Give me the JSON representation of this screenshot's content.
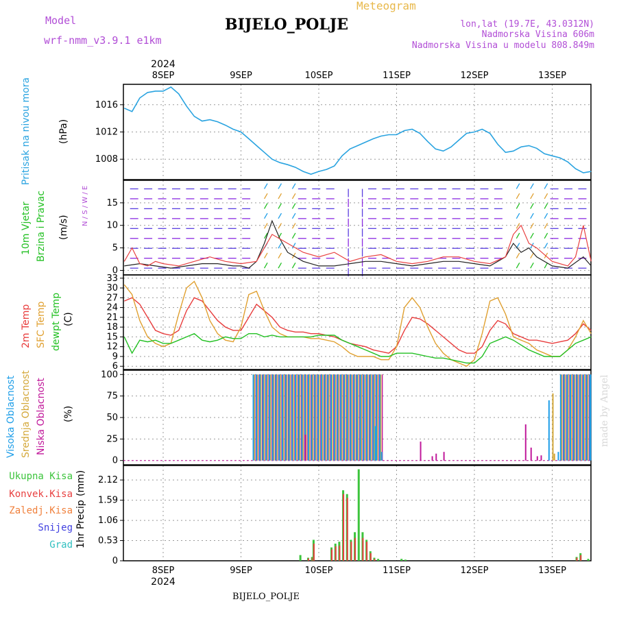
{
  "header": {
    "model_label": "Model",
    "model_name": "wrf-nmm_v3.9.1  e1km",
    "title": "BIJELO_POLJE",
    "meteogram_label": "Meteogram",
    "coords": "lon,lat (19.7E, 43.0312N)",
    "altitude": "Nadmorska Visina 606m",
    "model_altitude": "Nadmorska Visina u modelu 808.849m",
    "footer_title": "BIJELO_POLJE",
    "watermark": "made by Angel",
    "year_top": "2024",
    "year_bottom": "2024"
  },
  "colors": {
    "pressure": "#29a3e0",
    "temp2m": "#e83c3c",
    "sfc": "#e0a030",
    "dew": "#22c022",
    "cloud_high": "#1e9ee8",
    "cloud_mid": "#d4a83a",
    "cloud_low": "#c0189a",
    "precip_total": "#3cc43c",
    "precip_conv": "#e84040",
    "precip_strat": "#f0803c",
    "snow": "#4040e0",
    "hail": "#30c0c0",
    "wind_speed": "#222222",
    "wind_gust": "#e84040",
    "wind_barb": "#8a2be2"
  },
  "chart_data": [
    {
      "type": "line",
      "panel": "pressure",
      "ylabel_main": "Pritisak na nivou mora",
      "ylabel_unit": "(hPa)",
      "yticks": [
        1008,
        1012,
        1016
      ],
      "ylim": [
        1005,
        1019
      ],
      "xlabel_days": [
        "8SEP",
        "9SEP",
        "10SEP",
        "11SEP",
        "12SEP",
        "13SEP"
      ],
      "x": [
        -0.5,
        -0.4,
        -0.3,
        -0.2,
        -0.1,
        0,
        0.1,
        0.2,
        0.3,
        0.4,
        0.5,
        0.6,
        0.7,
        0.8,
        0.9,
        1.0,
        1.1,
        1.2,
        1.3,
        1.4,
        1.5,
        1.6,
        1.7,
        1.8,
        1.9,
        2.0,
        2.1,
        2.2,
        2.3,
        2.4,
        2.5,
        2.6,
        2.7,
        2.8,
        2.9,
        3.0,
        3.1,
        3.2,
        3.3,
        3.4,
        3.5,
        3.6,
        3.7,
        3.8,
        3.9,
        4.0,
        4.1,
        4.2,
        4.3,
        4.4,
        4.5,
        4.6,
        4.7,
        4.8,
        4.9,
        5.0,
        5.1,
        5.2,
        5.3,
        5.4,
        5.5
      ],
      "values": [
        1015.5,
        1015.0,
        1017.0,
        1017.8,
        1018.0,
        1018.0,
        1018.6,
        1017.6,
        1015.8,
        1014.3,
        1013.6,
        1013.8,
        1013.5,
        1013.0,
        1012.4,
        1012.0,
        1011.0,
        1010.0,
        1009.0,
        1008.0,
        1007.5,
        1007.2,
        1006.8,
        1006.2,
        1005.8,
        1006.2,
        1006.5,
        1007.0,
        1008.5,
        1009.5,
        1010.0,
        1010.5,
        1011.0,
        1011.4,
        1011.6,
        1011.6,
        1012.2,
        1012.4,
        1011.8,
        1010.6,
        1009.5,
        1009.2,
        1009.8,
        1010.8,
        1011.8,
        1012.0,
        1012.4,
        1011.8,
        1010.2,
        1009.0,
        1009.2,
        1009.8,
        1010.0,
        1009.6,
        1008.8,
        1008.5,
        1008.2,
        1007.6,
        1006.6,
        1006.0,
        1006.2
      ]
    },
    {
      "type": "line",
      "panel": "wind",
      "ylabel_main": "10m Vjetar",
      "ylabel_sub": "Brzina i Pravac",
      "ylabel_unit": "(m/s)",
      "compass": "N / S / W / E",
      "yticks": [
        0,
        5,
        10,
        15
      ],
      "ylim": [
        -1,
        20
      ],
      "series": [
        {
          "key": "speed",
          "x": [
            -0.5,
            -0.3,
            -0.1,
            0.1,
            0.3,
            0.5,
            0.7,
            0.9,
            1.0,
            1.1,
            1.2,
            1.3,
            1.4,
            1.5,
            1.6,
            1.8,
            2.0,
            2.2,
            2.4,
            2.6,
            2.8,
            3.0,
            3.2,
            3.4,
            3.6,
            3.8,
            4.0,
            4.2,
            4.3,
            4.4,
            4.5,
            4.6,
            4.7,
            4.8,
            5.0,
            5.2,
            5.4,
            5.5
          ],
          "values": [
            1,
            1.5,
            1,
            0.5,
            1,
            1.5,
            1.5,
            1,
            1,
            0.5,
            2,
            6,
            11,
            7,
            4,
            2,
            1,
            1,
            1.5,
            2,
            2,
            1.5,
            1,
            1.5,
            2,
            2,
            1.5,
            1,
            2,
            3,
            6,
            4,
            5,
            3,
            1,
            0.5,
            3,
            1
          ]
        },
        {
          "key": "gust",
          "x": [
            -0.5,
            -0.4,
            -0.3,
            -0.2,
            -0.1,
            0,
            0.2,
            0.4,
            0.6,
            0.8,
            1.0,
            1.2,
            1.4,
            1.6,
            1.8,
            2.0,
            2.2,
            2.4,
            2.6,
            2.8,
            3.0,
            3.2,
            3.4,
            3.6,
            3.8,
            4.0,
            4.2,
            4.4,
            4.5,
            4.6,
            4.7,
            4.8,
            5.0,
            5.2,
            5.3,
            5.4,
            5.5
          ],
          "values": [
            2,
            5,
            1.5,
            1,
            2,
            1.5,
            1,
            2,
            3,
            2,
            1.5,
            2,
            8,
            6,
            4,
            3,
            4,
            2,
            3,
            3.5,
            2,
            1.5,
            2,
            3,
            3,
            2,
            1.5,
            3,
            8,
            10,
            6,
            5,
            2,
            1,
            3,
            10,
            2
          ]
        }
      ]
    },
    {
      "type": "line",
      "panel": "temperature",
      "ylabel_a": "2m Temp",
      "ylabel_b": "SFC Temp",
      "ylabel_c": "dewpt Temp",
      "ylabel_unit": "(C)",
      "yticks": [
        6,
        9,
        12,
        15,
        18,
        21,
        24,
        27,
        30,
        33
      ],
      "ylim": [
        5,
        34
      ],
      "series": [
        {
          "key": "temp2m",
          "x": [
            -0.5,
            -0.4,
            -0.3,
            -0.2,
            -0.1,
            0,
            0.1,
            0.2,
            0.3,
            0.4,
            0.5,
            0.6,
            0.7,
            0.8,
            0.9,
            1.0,
            1.1,
            1.2,
            1.3,
            1.4,
            1.5,
            1.6,
            1.7,
            1.8,
            1.9,
            2.0,
            2.1,
            2.2,
            2.3,
            2.4,
            2.5,
            2.6,
            2.7,
            2.8,
            2.9,
            3.0,
            3.1,
            3.2,
            3.3,
            3.4,
            3.5,
            3.6,
            3.7,
            3.8,
            3.9,
            4.0,
            4.1,
            4.2,
            4.3,
            4.4,
            4.5,
            4.6,
            4.7,
            4.8,
            4.9,
            5.0,
            5.1,
            5.2,
            5.3,
            5.4,
            5.5
          ],
          "values": [
            26,
            27,
            25,
            21,
            17,
            16,
            15.5,
            17,
            23,
            27,
            26,
            23,
            20,
            18,
            17,
            17,
            21,
            25,
            23,
            21,
            18,
            17,
            16.5,
            16.5,
            16,
            16,
            15.5,
            15,
            14,
            13,
            12.5,
            12,
            11,
            10.5,
            10,
            12,
            17,
            21,
            20.5,
            19,
            17,
            15,
            13,
            11,
            10,
            10,
            12,
            17,
            20,
            19,
            16,
            15,
            14,
            14,
            13.5,
            13,
            13.5,
            14,
            16,
            19,
            17
          ]
        },
        {
          "key": "sfc",
          "x": [
            -0.5,
            -0.4,
            -0.3,
            -0.2,
            -0.1,
            0,
            0.1,
            0.2,
            0.3,
            0.4,
            0.5,
            0.6,
            0.7,
            0.8,
            0.9,
            1.0,
            1.1,
            1.2,
            1.3,
            1.4,
            1.5,
            1.6,
            1.7,
            1.8,
            1.9,
            2.0,
            2.1,
            2.2,
            2.3,
            2.4,
            2.5,
            2.6,
            2.7,
            2.8,
            2.9,
            3.0,
            3.1,
            3.2,
            3.3,
            3.4,
            3.5,
            3.6,
            3.7,
            3.8,
            3.9,
            4.0,
            4.1,
            4.2,
            4.3,
            4.4,
            4.5,
            4.6,
            4.7,
            4.8,
            4.9,
            5.0,
            5.1,
            5.2,
            5.3,
            5.4,
            5.5
          ],
          "values": [
            31,
            28,
            20,
            15,
            13,
            12,
            13,
            22,
            30,
            32,
            27,
            20,
            16,
            14,
            13.5,
            18,
            28,
            29,
            23,
            18,
            16,
            15,
            15,
            15,
            14.5,
            14.5,
            14,
            13.5,
            12,
            10,
            9,
            9,
            9,
            8,
            8,
            12,
            24,
            27,
            24,
            18,
            13,
            10,
            8,
            7,
            6,
            8,
            16,
            26,
            27,
            22,
            15,
            14,
            13,
            11,
            10,
            9,
            9,
            11,
            15,
            20,
            16
          ]
        },
        {
          "key": "dew",
          "x": [
            -0.5,
            -0.4,
            -0.3,
            -0.2,
            -0.1,
            0,
            0.1,
            0.2,
            0.3,
            0.4,
            0.5,
            0.6,
            0.7,
            0.8,
            0.9,
            1.0,
            1.1,
            1.2,
            1.3,
            1.4,
            1.5,
            1.6,
            1.7,
            1.8,
            1.9,
            2.0,
            2.1,
            2.2,
            2.3,
            2.4,
            2.5,
            2.6,
            2.7,
            2.8,
            2.9,
            3.0,
            3.1,
            3.2,
            3.3,
            3.4,
            3.5,
            3.6,
            3.7,
            3.8,
            3.9,
            4.0,
            4.1,
            4.2,
            4.3,
            4.4,
            4.5,
            4.6,
            4.7,
            4.8,
            4.9,
            5.0,
            5.1,
            5.2,
            5.3,
            5.4,
            5.5
          ],
          "values": [
            15,
            10,
            14,
            13.5,
            14,
            13,
            13,
            14,
            15,
            16,
            14,
            13.5,
            14,
            15,
            14.5,
            14.5,
            16,
            16,
            15,
            15.5,
            15,
            15,
            15,
            15,
            15,
            15.5,
            15.5,
            15.5,
            14,
            13,
            12,
            11,
            10,
            9,
            9,
            10,
            10,
            10,
            9.5,
            9,
            8.5,
            8.5,
            8,
            7.5,
            7,
            7,
            9,
            13,
            14,
            15,
            14,
            12.5,
            11,
            10,
            9,
            9,
            9,
            11,
            13,
            14,
            15
          ]
        }
      ]
    },
    {
      "type": "bar",
      "panel": "clouds",
      "ylabel_a": "Visoka Oblacnost",
      "ylabel_b": "Srednja Oblacnost",
      "ylabel_c": "Niska Oblacnost",
      "ylabel_unit": "(%)",
      "yticks": [
        0,
        25,
        50,
        75,
        100
      ],
      "ylim": [
        -5,
        105
      ],
      "segments": [
        {
          "from": 1.15,
          "to": 2.8,
          "high": 100,
          "mid": 100,
          "low": 100
        },
        {
          "from": 5.1,
          "to": 5.5,
          "high": 100,
          "mid": 100,
          "low": 100
        }
      ],
      "spikes": [
        {
          "x": 1.82,
          "layer": "low",
          "value": 30
        },
        {
          "x": 2.72,
          "layer": "high",
          "value": 40
        },
        {
          "x": 2.8,
          "layer": "high",
          "value": 10
        },
        {
          "x": 3.3,
          "layer": "low",
          "value": 22
        },
        {
          "x": 3.45,
          "layer": "low",
          "value": 5
        },
        {
          "x": 3.5,
          "layer": "low",
          "value": 8
        },
        {
          "x": 3.6,
          "layer": "low",
          "value": 10
        },
        {
          "x": 4.65,
          "layer": "low",
          "value": 42
        },
        {
          "x": 4.72,
          "layer": "low",
          "value": 15
        },
        {
          "x": 4.8,
          "layer": "low",
          "value": 5
        },
        {
          "x": 4.85,
          "layer": "low",
          "value": 6
        },
        {
          "x": 4.95,
          "layer": "high",
          "value": 70
        },
        {
          "x": 5.0,
          "layer": "mid",
          "value": 78
        },
        {
          "x": 5.02,
          "layer": "mid",
          "value": 8
        },
        {
          "x": 5.07,
          "layer": "high",
          "value": 10
        }
      ]
    },
    {
      "type": "bar",
      "panel": "precip",
      "ylabel_main": "1hr Precip",
      "ylabel_unit": "(mm)",
      "legend": [
        "Ukupna Kisa",
        "Konvek.Kisa",
        "Zaledj.Kisa",
        "Snijeg",
        "Grad"
      ],
      "yticks": [
        0,
        0.53,
        1.06,
        1.59,
        2.12
      ],
      "ylim": [
        0,
        2.5
      ],
      "x": [
        1.75,
        1.85,
        1.9,
        1.92,
        2.15,
        2.2,
        2.25,
        2.3,
        2.35,
        2.4,
        2.45,
        2.5,
        2.55,
        2.6,
        2.65,
        2.7,
        2.75,
        3.05,
        3.1,
        5.3,
        5.35,
        5.45
      ],
      "total": [
        0.15,
        0.08,
        0.1,
        0.55,
        0.35,
        0.45,
        0.5,
        1.85,
        1.75,
        0.55,
        0.75,
        2.4,
        0.75,
        0.55,
        0.25,
        0.08,
        0.05,
        0.05,
        0.03,
        0.1,
        0.2,
        0.05
      ],
      "convective": [
        0,
        0.06,
        0.08,
        0.45,
        0.3,
        0.38,
        0.4,
        1.75,
        1.65,
        0.5,
        0.6,
        0,
        0.6,
        0.5,
        0.2,
        0.05,
        0,
        0,
        0,
        0.08,
        0.15,
        0
      ]
    }
  ]
}
